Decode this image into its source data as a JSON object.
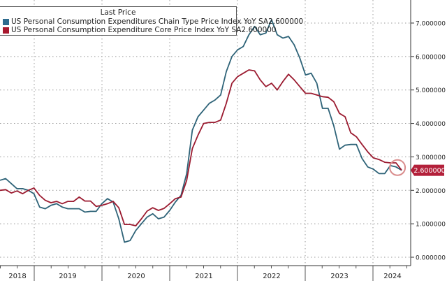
{
  "chart_data": {
    "type": "line",
    "title": "",
    "legend_title": "Last Price",
    "legend_placement": "top-left",
    "grid": true,
    "y_axis_side": "right",
    "ylim": [
      0,
      7.4
    ],
    "yticks": [
      "0.000000",
      "1.000000",
      "2.000000",
      "3.000000",
      "4.000000",
      "5.000000",
      "6.000000",
      "7.000000"
    ],
    "ytick_values": [
      0,
      1,
      2,
      3,
      4,
      5,
      6,
      7
    ],
    "xtick_labels": [
      "2018",
      "2019",
      "2020",
      "2021",
      "2022",
      "2023",
      "2024"
    ],
    "x_start": "2018-06",
    "x_end": "2024-05",
    "x_frequency": "monthly",
    "last_price_label": "2.600000",
    "series": [
      {
        "name": "US Personal Consumption Expenditures Chain Type Price Index YoY SA",
        "last": "2.600000",
        "color": "#2e6378",
        "values": [
          2.3,
          2.35,
          2.2,
          2.05,
          2.05,
          2.0,
          1.9,
          1.5,
          1.45,
          1.55,
          1.6,
          1.5,
          1.45,
          1.45,
          1.45,
          1.35,
          1.37,
          1.37,
          1.6,
          1.75,
          1.65,
          1.15,
          0.45,
          0.5,
          0.8,
          1.0,
          1.2,
          1.3,
          1.15,
          1.2,
          1.4,
          1.65,
          1.85,
          2.5,
          3.8,
          4.2,
          4.4,
          4.6,
          4.7,
          4.85,
          5.55,
          6.0,
          6.2,
          6.3,
          6.65,
          6.9,
          6.65,
          6.7,
          7.1,
          6.65,
          6.55,
          6.6,
          6.35,
          5.95,
          5.45,
          5.5,
          5.2,
          4.45,
          4.45,
          3.93,
          3.23,
          3.35,
          3.37,
          3.37,
          2.95,
          2.7,
          2.63,
          2.5,
          2.5,
          2.74,
          2.7,
          2.6
        ]
      },
      {
        "name": "US Personal Consumption Expenditure Core Price Index YoY SA",
        "last": "2.600000",
        "color": "#9b1b30",
        "values": [
          2.0,
          2.02,
          1.92,
          1.98,
          1.9,
          2.0,
          2.07,
          1.85,
          1.7,
          1.63,
          1.67,
          1.6,
          1.67,
          1.67,
          1.8,
          1.68,
          1.68,
          1.52,
          1.55,
          1.6,
          1.67,
          1.48,
          0.98,
          0.98,
          0.94,
          1.15,
          1.38,
          1.48,
          1.4,
          1.46,
          1.6,
          1.75,
          1.8,
          2.3,
          3.25,
          3.65,
          4.0,
          4.03,
          4.03,
          4.1,
          4.6,
          5.2,
          5.4,
          5.5,
          5.6,
          5.57,
          5.3,
          5.1,
          5.2,
          5.0,
          5.25,
          5.47,
          5.3,
          5.1,
          4.9,
          4.9,
          4.85,
          4.8,
          4.78,
          4.65,
          4.3,
          4.2,
          3.72,
          3.6,
          3.37,
          3.15,
          2.97,
          2.92,
          2.84,
          2.82,
          2.82,
          2.6
        ]
      }
    ],
    "annotation": "circle-highlight-latest-value",
    "label_color": "#b3203a"
  }
}
